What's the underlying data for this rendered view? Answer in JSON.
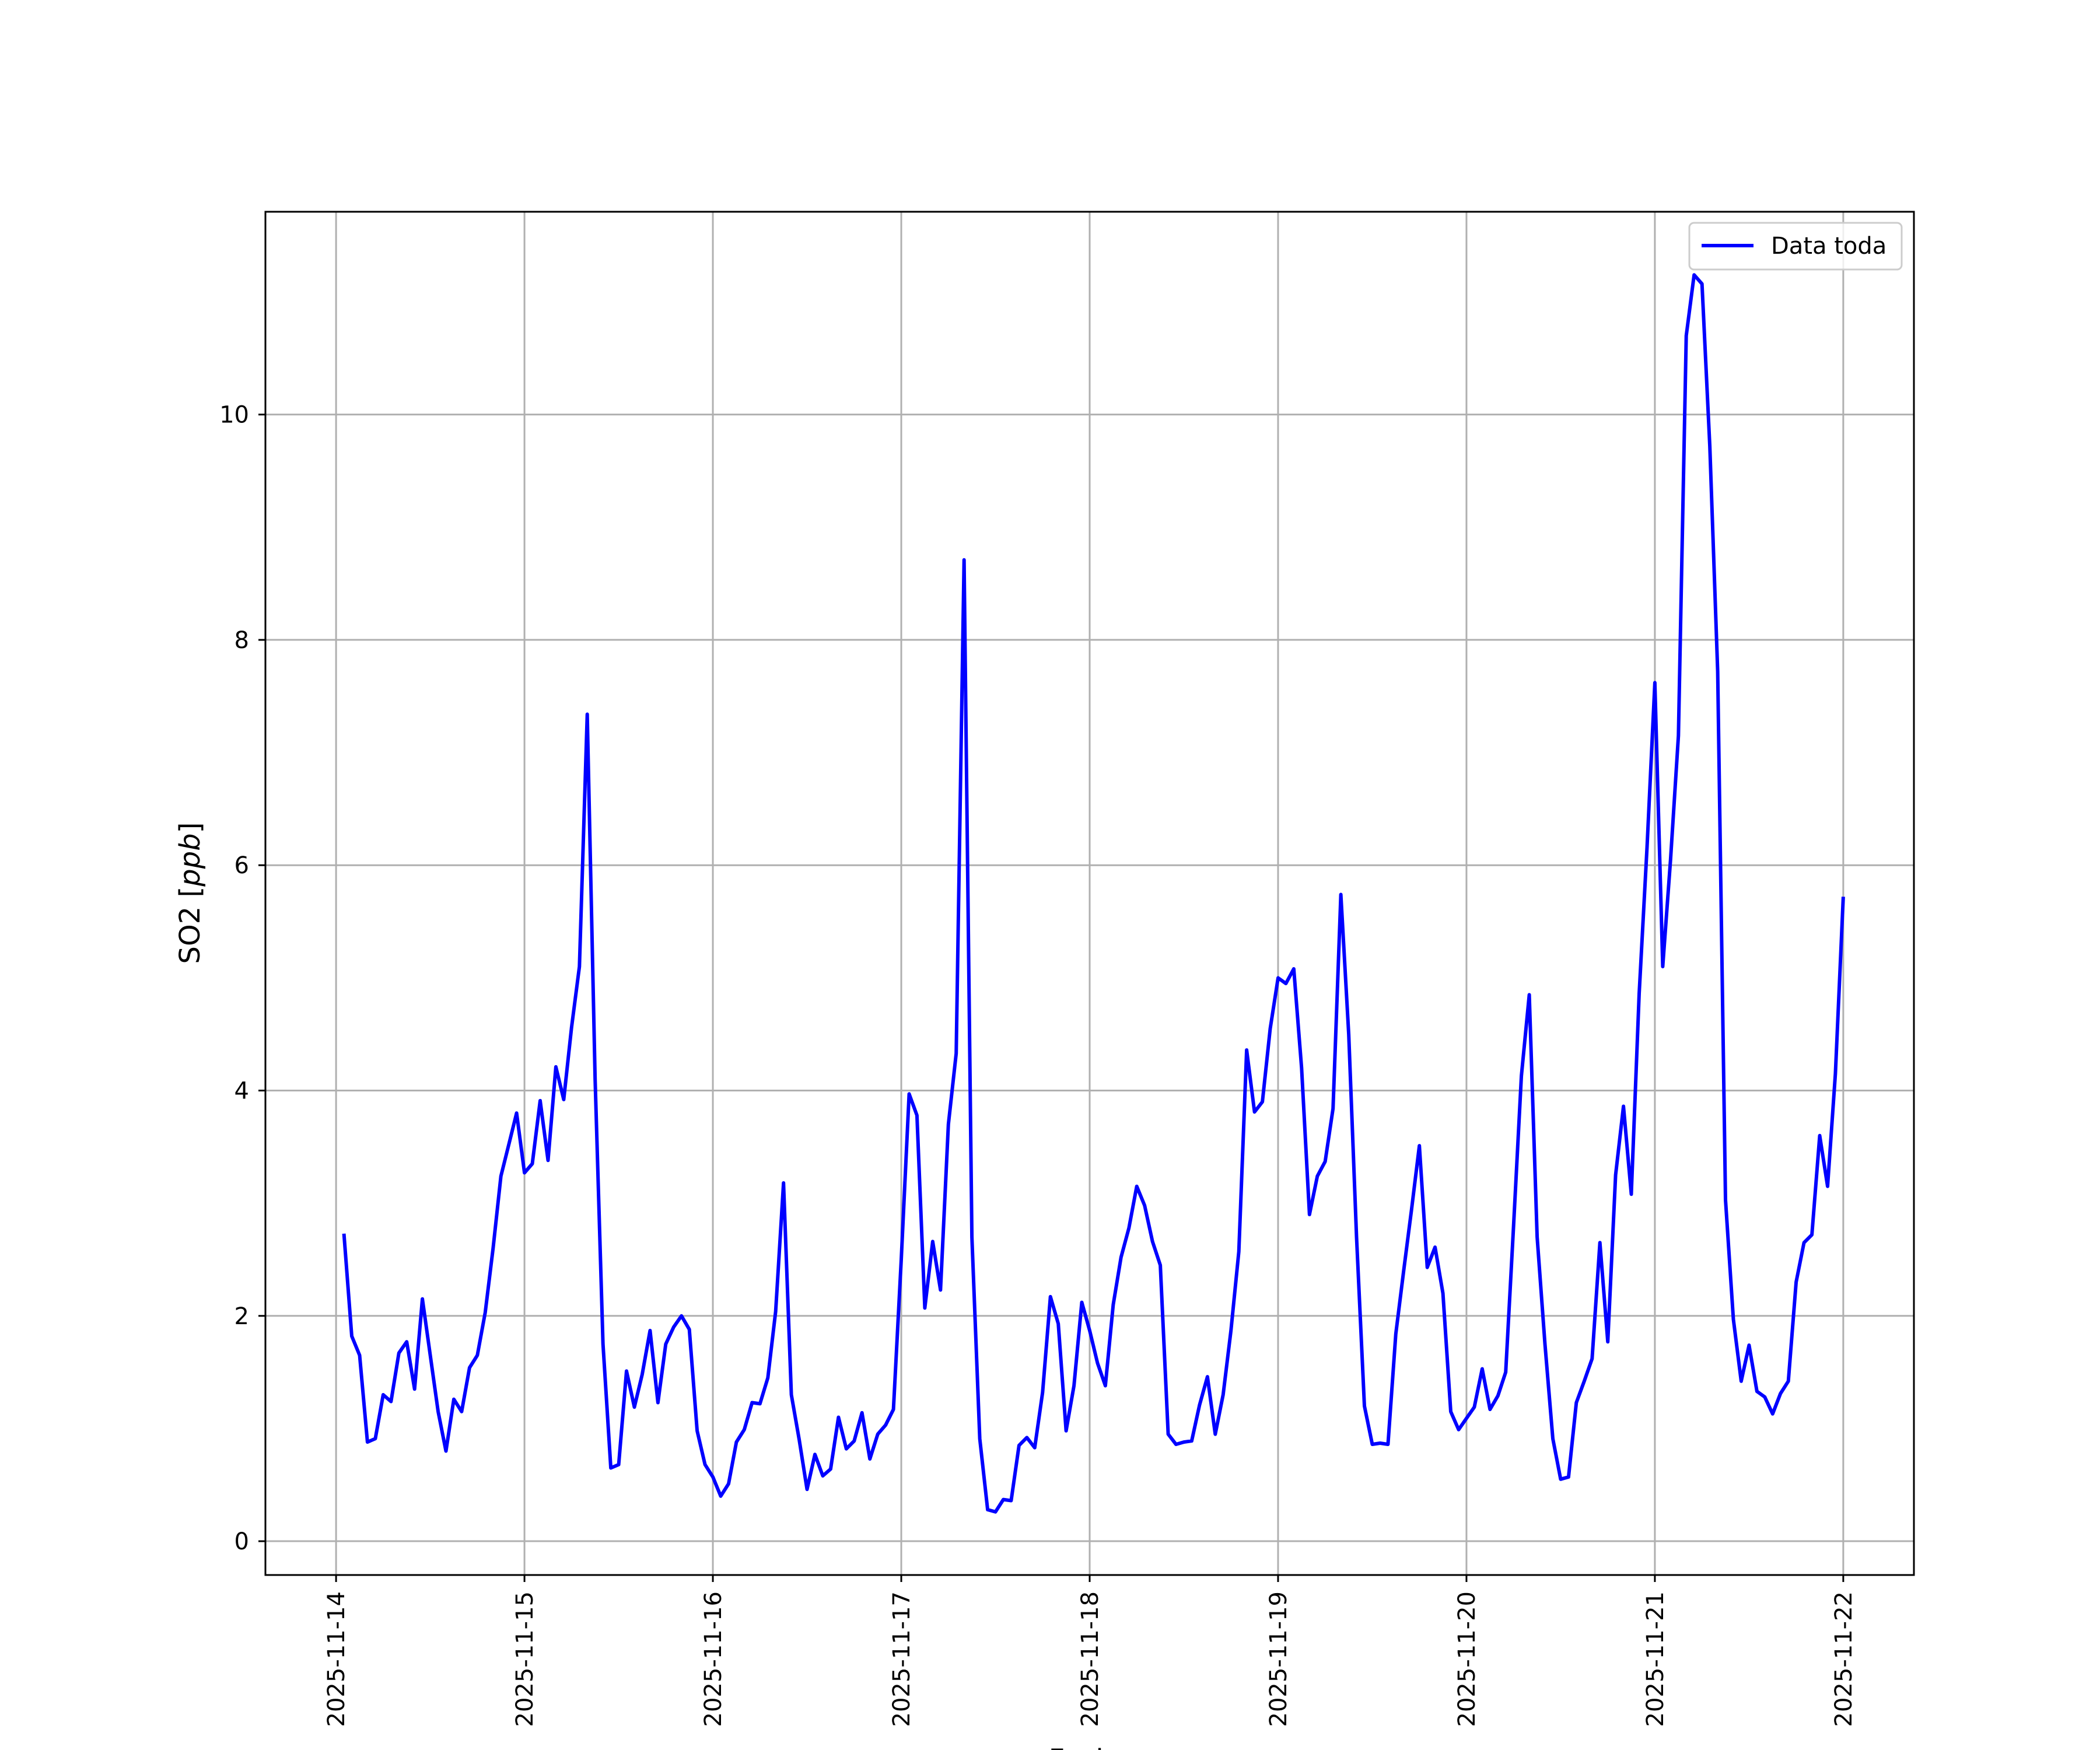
{
  "chart_data": {
    "type": "line",
    "title": "",
    "xlabel": "Fecha",
    "ylabel_main": "SO2 [",
    "ylabel_unit": "ppb",
    "ylabel_close": "]",
    "grid": true,
    "legend_placement": "top-right",
    "x_ticks": [
      "2025-11-14",
      "2025-11-15",
      "2025-11-16",
      "2025-11-17",
      "2025-11-18",
      "2025-11-19",
      "2025-11-20",
      "2025-11-21",
      "2025-11-22"
    ],
    "y_ticks": [
      0,
      2,
      4,
      6,
      8,
      10
    ],
    "xlim": [
      "2025-11-13 15:00",
      "2025-11-22 09:00"
    ],
    "ylim": [
      -0.3,
      11.8
    ],
    "colors": {
      "line": "#0000ff",
      "grid": "#b0b0b0",
      "axes": "#000000"
    },
    "series": [
      {
        "name": "Data toda",
        "x": [
          "2025-11-14 01:00",
          "2025-11-14 02:00",
          "2025-11-14 03:00",
          "2025-11-14 04:00",
          "2025-11-14 05:00",
          "2025-11-14 06:00",
          "2025-11-14 07:00",
          "2025-11-14 08:00",
          "2025-11-14 09:00",
          "2025-11-14 10:00",
          "2025-11-14 11:00",
          "2025-11-14 12:00",
          "2025-11-14 13:00",
          "2025-11-14 14:00",
          "2025-11-14 15:00",
          "2025-11-14 16:00",
          "2025-11-14 17:00",
          "2025-11-14 18:00",
          "2025-11-14 19:00",
          "2025-11-14 20:00",
          "2025-11-14 21:00",
          "2025-11-14 22:00",
          "2025-11-14 23:00",
          "2025-11-15 00:00",
          "2025-11-15 01:00",
          "2025-11-15 02:00",
          "2025-11-15 03:00",
          "2025-11-15 04:00",
          "2025-11-15 05:00",
          "2025-11-15 06:00",
          "2025-11-15 07:00",
          "2025-11-15 08:00",
          "2025-11-15 09:00",
          "2025-11-15 10:00",
          "2025-11-15 11:00",
          "2025-11-15 12:00",
          "2025-11-15 13:00",
          "2025-11-15 14:00",
          "2025-11-15 15:00",
          "2025-11-15 16:00",
          "2025-11-15 17:00",
          "2025-11-15 18:00",
          "2025-11-15 19:00",
          "2025-11-15 20:00",
          "2025-11-15 21:00",
          "2025-11-15 22:00",
          "2025-11-15 23:00",
          "2025-11-16 00:00",
          "2025-11-16 01:00",
          "2025-11-16 02:00",
          "2025-11-16 03:00",
          "2025-11-16 04:00",
          "2025-11-16 05:00",
          "2025-11-16 06:00",
          "2025-11-16 07:00",
          "2025-11-16 08:00",
          "2025-11-16 09:00",
          "2025-11-16 10:00",
          "2025-11-16 11:00",
          "2025-11-16 12:00",
          "2025-11-16 13:00",
          "2025-11-16 14:00",
          "2025-11-16 15:00",
          "2025-11-16 16:00",
          "2025-11-16 17:00",
          "2025-11-16 18:00",
          "2025-11-16 19:00",
          "2025-11-16 20:00",
          "2025-11-16 21:00",
          "2025-11-16 22:00",
          "2025-11-16 23:00",
          "2025-11-17 00:00",
          "2025-11-17 01:00",
          "2025-11-17 02:00",
          "2025-11-17 03:00",
          "2025-11-17 04:00",
          "2025-11-17 05:00",
          "2025-11-17 06:00",
          "2025-11-17 07:00",
          "2025-11-17 08:00",
          "2025-11-17 09:00",
          "2025-11-17 10:00",
          "2025-11-17 11:00",
          "2025-11-17 12:00",
          "2025-11-17 13:00",
          "2025-11-17 14:00",
          "2025-11-17 15:00",
          "2025-11-17 16:00",
          "2025-11-17 17:00",
          "2025-11-17 18:00",
          "2025-11-17 19:00",
          "2025-11-17 20:00",
          "2025-11-17 21:00",
          "2025-11-17 22:00",
          "2025-11-17 23:00",
          "2025-11-18 00:00",
          "2025-11-18 01:00",
          "2025-11-18 02:00",
          "2025-11-18 03:00",
          "2025-11-18 04:00",
          "2025-11-18 05:00",
          "2025-11-18 06:00",
          "2025-11-18 07:00",
          "2025-11-18 08:00",
          "2025-11-18 09:00",
          "2025-11-18 10:00",
          "2025-11-18 11:00",
          "2025-11-18 12:00",
          "2025-11-18 13:00",
          "2025-11-18 14:00",
          "2025-11-18 15:00",
          "2025-11-18 16:00",
          "2025-11-18 17:00",
          "2025-11-18 18:00",
          "2025-11-18 19:00",
          "2025-11-18 20:00",
          "2025-11-18 21:00",
          "2025-11-18 22:00",
          "2025-11-18 23:00",
          "2025-11-19 00:00",
          "2025-11-19 01:00",
          "2025-11-19 02:00",
          "2025-11-19 03:00",
          "2025-11-19 04:00",
          "2025-11-19 05:00",
          "2025-11-19 06:00",
          "2025-11-19 07:00",
          "2025-11-19 08:00",
          "2025-11-19 09:00",
          "2025-11-19 10:00",
          "2025-11-19 11:00",
          "2025-11-19 12:00",
          "2025-11-19 13:00",
          "2025-11-19 14:00",
          "2025-11-19 15:00",
          "2025-11-19 16:00",
          "2025-11-19 17:00",
          "2025-11-19 18:00",
          "2025-11-19 19:00",
          "2025-11-19 20:00",
          "2025-11-19 21:00",
          "2025-11-19 22:00",
          "2025-11-19 23:00",
          "2025-11-20 00:00",
          "2025-11-20 01:00",
          "2025-11-20 02:00",
          "2025-11-20 03:00",
          "2025-11-20 04:00",
          "2025-11-20 05:00",
          "2025-11-20 06:00",
          "2025-11-20 07:00",
          "2025-11-20 08:00",
          "2025-11-20 09:00",
          "2025-11-20 10:00",
          "2025-11-20 11:00",
          "2025-11-20 12:00",
          "2025-11-20 13:00",
          "2025-11-20 14:00",
          "2025-11-20 15:00",
          "2025-11-20 16:00",
          "2025-11-20 17:00",
          "2025-11-20 18:00",
          "2025-11-20 19:00",
          "2025-11-20 20:00",
          "2025-11-20 21:00",
          "2025-11-20 22:00",
          "2025-11-20 23:00",
          "2025-11-21 00:00",
          "2025-11-21 01:00",
          "2025-11-21 02:00",
          "2025-11-21 03:00",
          "2025-11-21 04:00",
          "2025-11-21 05:00",
          "2025-11-21 06:00",
          "2025-11-21 07:00",
          "2025-11-21 08:00",
          "2025-11-21 09:00",
          "2025-11-21 10:00",
          "2025-11-21 11:00",
          "2025-11-21 12:00",
          "2025-11-21 13:00",
          "2025-11-21 14:00",
          "2025-11-21 15:00",
          "2025-11-21 16:00",
          "2025-11-21 17:00",
          "2025-11-21 18:00",
          "2025-11-21 19:00",
          "2025-11-21 20:00",
          "2025-11-21 21:00",
          "2025-11-21 22:00",
          "2025-11-21 23:00",
          "2025-11-22 00:00"
        ],
        "y": [
          2.73,
          1.82,
          1.65,
          0.88,
          0.91,
          1.3,
          1.24,
          1.67,
          1.77,
          1.35,
          2.15,
          1.65,
          1.15,
          0.8,
          1.26,
          1.15,
          1.54,
          1.65,
          2.03,
          2.6,
          3.24,
          3.52,
          3.8,
          3.27,
          3.35,
          3.91,
          3.38,
          4.21,
          3.92,
          4.56,
          5.1,
          7.34,
          4.1,
          1.75,
          0.65,
          0.68,
          1.51,
          1.19,
          1.48,
          1.87,
          1.23,
          1.75,
          1.9,
          2.0,
          1.88,
          0.98,
          0.68,
          0.57,
          0.4,
          0.51,
          0.88,
          0.99,
          1.23,
          1.22,
          1.45,
          2.04,
          3.18,
          1.3,
          0.9,
          0.46,
          0.77,
          0.58,
          0.64,
          1.1,
          0.82,
          0.89,
          1.14,
          0.73,
          0.95,
          1.03,
          1.17,
          2.5,
          3.97,
          3.78,
          2.07,
          2.66,
          2.23,
          3.7,
          4.33,
          8.71,
          2.7,
          0.91,
          0.28,
          0.26,
          0.37,
          0.36,
          0.85,
          0.92,
          0.83,
          1.32,
          2.17,
          1.93,
          0.98,
          1.38,
          2.12,
          1.87,
          1.58,
          1.38,
          2.1,
          2.52,
          2.78,
          3.15,
          2.98,
          2.66,
          2.45,
          0.95,
          0.86,
          0.88,
          0.89,
          1.21,
          1.46,
          0.95,
          1.3,
          1.87,
          2.57,
          4.36,
          3.81,
          3.9,
          4.55,
          5.0,
          4.95,
          5.08,
          4.2,
          2.9,
          3.24,
          3.37,
          3.84,
          5.74,
          4.5,
          2.7,
          1.2,
          0.86,
          0.87,
          0.86,
          1.84,
          2.4,
          2.94,
          3.51,
          2.43,
          2.61,
          2.2,
          1.15,
          0.99,
          1.09,
          1.19,
          1.53,
          1.17,
          1.29,
          1.5,
          2.8,
          4.13,
          4.85,
          2.7,
          1.75,
          0.91,
          0.55,
          0.57,
          1.23,
          1.42,
          1.62,
          2.65,
          1.77,
          3.25,
          3.86,
          3.08,
          4.86,
          6.16,
          7.62,
          5.1,
          6.05,
          7.15,
          10.7,
          11.24,
          11.16,
          9.72,
          7.72,
          3.03,
          1.97,
          1.42,
          1.74,
          1.33,
          1.28,
          1.13,
          1.31,
          1.42,
          2.3,
          2.65,
          2.72,
          3.6,
          3.15,
          4.15,
          5.72
        ]
      }
    ]
  }
}
